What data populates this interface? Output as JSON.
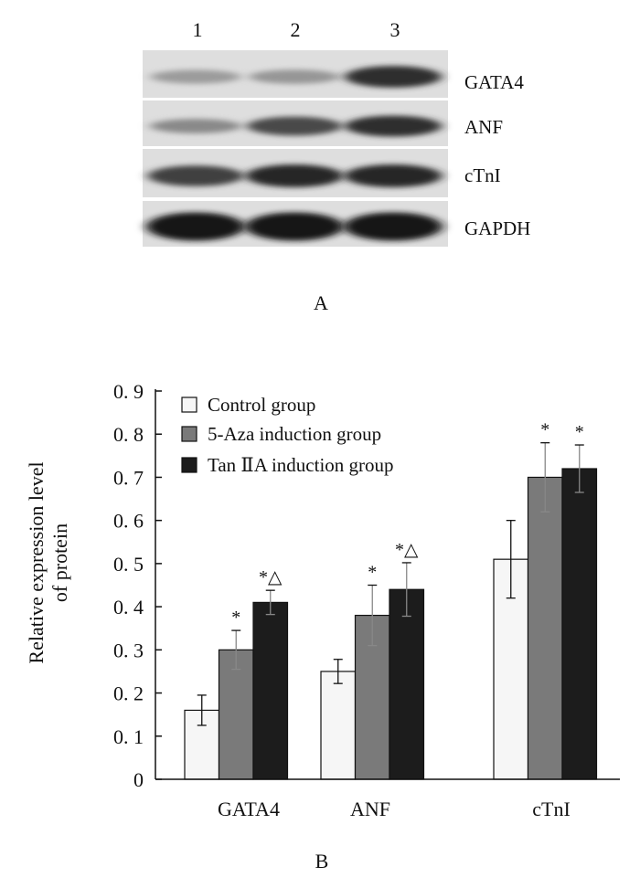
{
  "panel_a": {
    "label": "A",
    "lanes": [
      "1",
      "2",
      "3"
    ],
    "proteins": [
      "GATA4",
      "ANF",
      "cTnI",
      "GAPDH"
    ],
    "band_intensity": [
      [
        0.25,
        0.28,
        0.85
      ],
      [
        0.35,
        0.7,
        0.85
      ],
      [
        0.75,
        0.9,
        0.9
      ],
      [
        1.0,
        1.0,
        1.0
      ]
    ]
  },
  "chart_data": {
    "type": "bar",
    "panel_label": "B",
    "title": "",
    "xlabel": "",
    "ylabel_line1": "Relative expression level",
    "ylabel_line2": "of protein",
    "categories": [
      "GATA4",
      "ANF",
      "cTnI"
    ],
    "ylim": [
      0,
      0.9
    ],
    "yticks": [
      "0",
      "0. 1",
      "0. 2",
      "0. 3",
      "0. 4",
      "0. 5",
      "0. 6",
      "0. 7",
      "0. 8",
      "0. 9"
    ],
    "grid": false,
    "legend_position": "top-left",
    "series": [
      {
        "name": "Control group",
        "color": "#f6f6f6",
        "values": [
          0.16,
          0.25,
          0.51
        ],
        "errors": [
          0.035,
          0.028,
          0.09
        ],
        "annotations": [
          "",
          "",
          ""
        ]
      },
      {
        "name": "5-Aza induction group",
        "color": "#7a7a7a",
        "values": [
          0.3,
          0.38,
          0.7
        ],
        "errors": [
          0.045,
          0.07,
          0.08
        ],
        "annotations": [
          "*",
          "*",
          "*"
        ]
      },
      {
        "name": "Tan ⅡA induction group",
        "color": "#1c1c1c",
        "values": [
          0.41,
          0.44,
          0.72
        ],
        "errors": [
          0.028,
          0.062,
          0.055
        ],
        "annotations": [
          "*△",
          "*△",
          "*"
        ]
      }
    ]
  }
}
